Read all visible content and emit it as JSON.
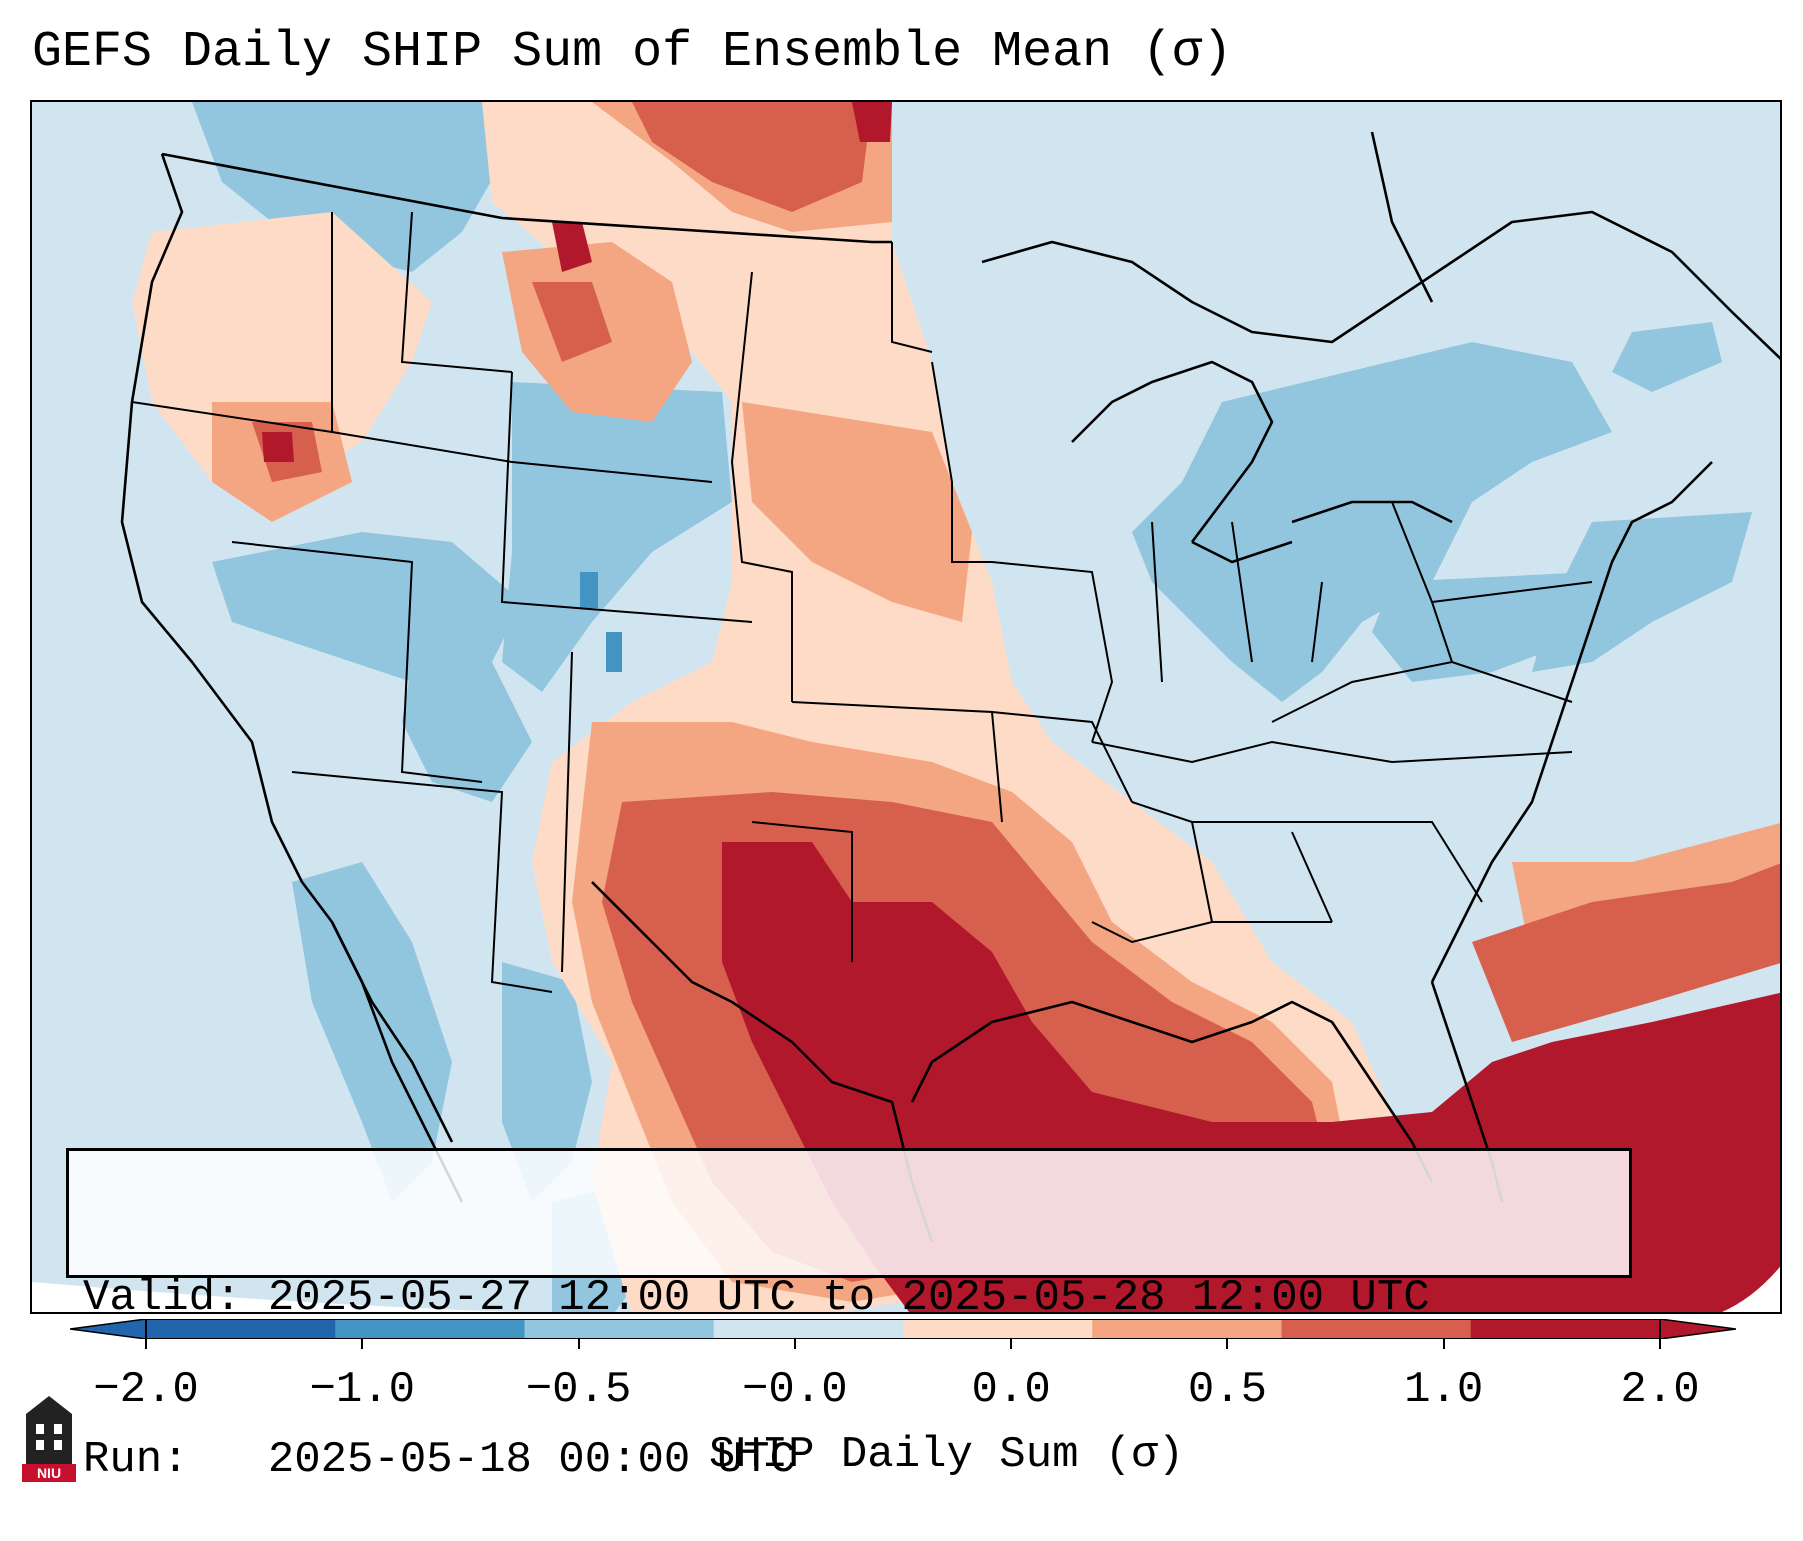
{
  "title": "GEFS Daily SHIP Sum of Ensemble Mean (σ)",
  "info": {
    "valid_label": "Valid:",
    "valid_value": "2025-05-27 12:00 UTC to 2025-05-28 12:00 UTC",
    "run_label": "Run:",
    "run_value": "2025-05-18 00:00 UTC"
  },
  "colorbar": {
    "label": "SHIP Daily Sum (σ)",
    "ticks": [
      "−2.0",
      "−1.0",
      "−0.5",
      "−0.0",
      "0.0",
      "0.5",
      "1.0",
      "2.0"
    ],
    "colors": [
      "#2166ac",
      "#4393c3",
      "#92c5de",
      "#d1e5f0",
      "#fddbc7",
      "#f4a582",
      "#d6604d",
      "#b2182b"
    ],
    "extend": "both"
  },
  "map": {
    "region": "Continental United States",
    "background_color": "#d1e5f0",
    "land_border_color": "#000000"
  },
  "logo_text": "NIU"
}
